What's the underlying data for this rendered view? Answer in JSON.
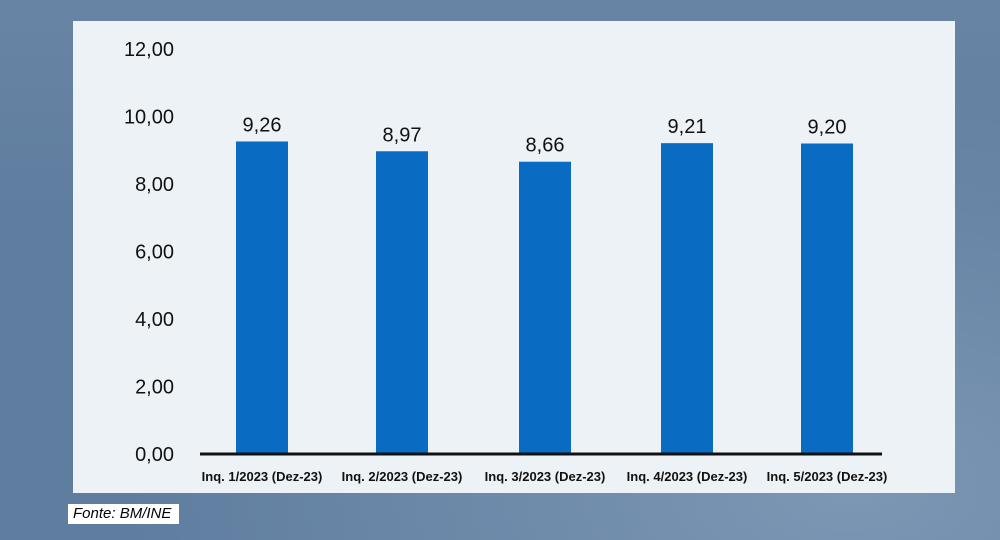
{
  "chart_data": {
    "type": "bar",
    "categories": [
      "Inq. 1/2023 (Dez-23)",
      "Inq. 2/2023 (Dez-23)",
      "Inq. 3/2023 (Dez-23)",
      "Inq. 4/2023 (Dez-23)",
      "Inq. 5/2023 (Dez-23)"
    ],
    "values": [
      9.26,
      8.97,
      8.66,
      9.21,
      9.2
    ],
    "value_labels": [
      "9,26",
      "8,97",
      "8,66",
      "9,21",
      "9,20"
    ],
    "yticks": [
      0,
      2,
      4,
      6,
      8,
      10,
      12
    ],
    "ytick_labels": [
      "0,00",
      "2,00",
      "4,00",
      "6,00",
      "8,00",
      "10,00",
      "12,00"
    ],
    "ylim": [
      0,
      12
    ],
    "title": "",
    "xlabel": "",
    "ylabel": "",
    "grid": false,
    "legend": false,
    "bar_color": "#0a6bc2"
  },
  "source": "Fonte: BM/INE",
  "colors": {
    "background": "#5f7d9f",
    "panel": "#edf2f6",
    "axis": "#111111",
    "text": "#111111"
  }
}
